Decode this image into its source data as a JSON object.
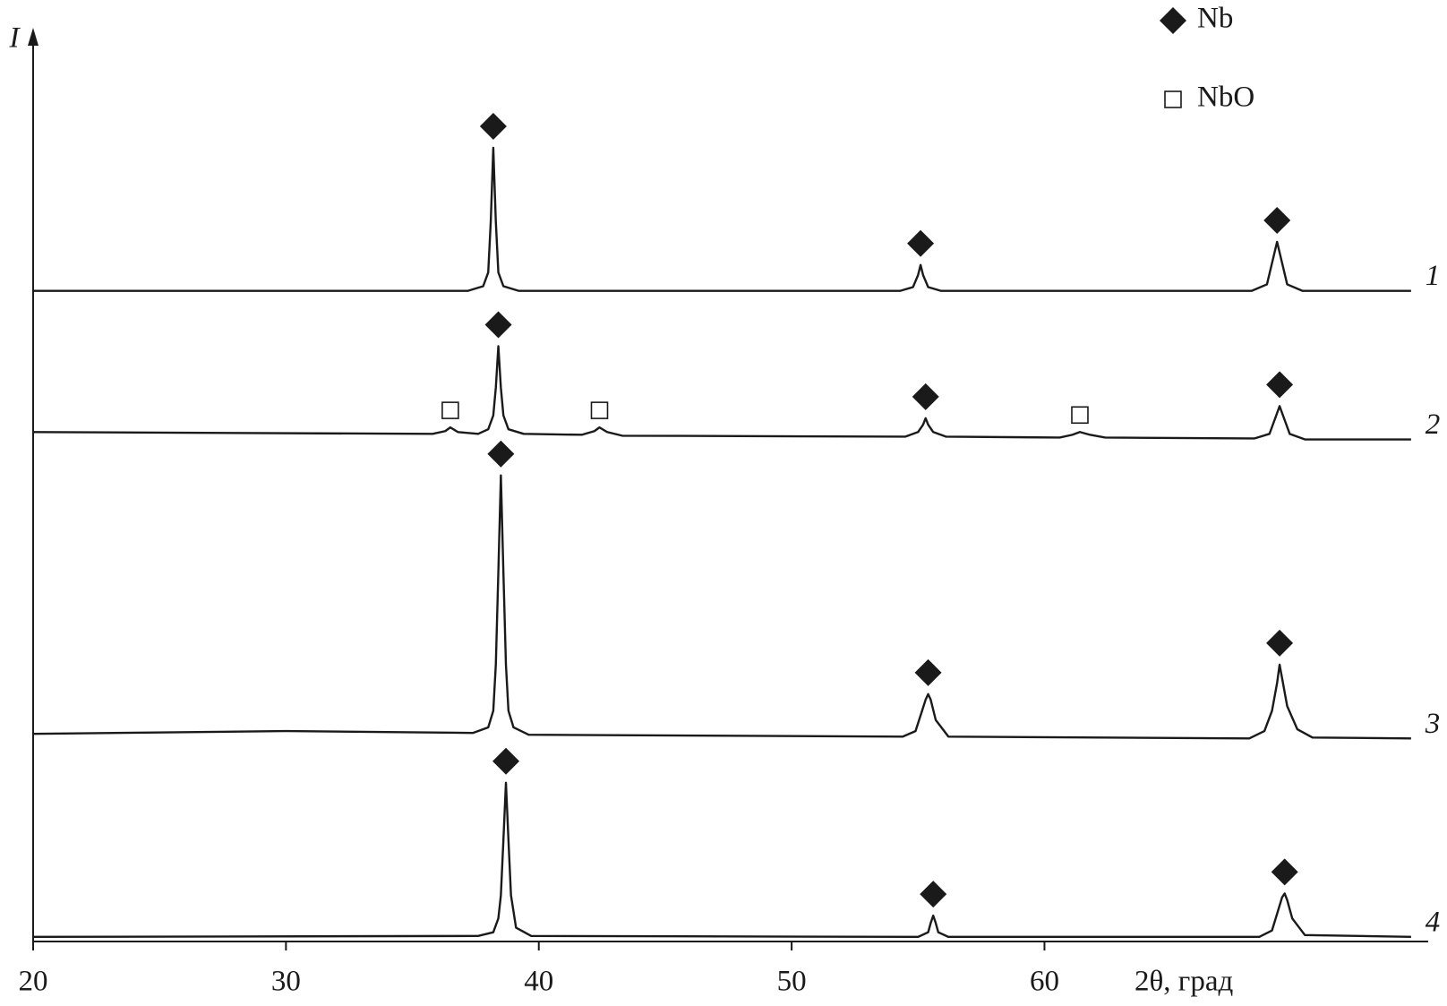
{
  "chart_data": {
    "type": "line",
    "xlabel": "2θ, град",
    "ylabel": "I",
    "xlim": [
      20,
      75
    ],
    "ylim": [
      0,
      990
    ],
    "xticks": [
      20,
      30,
      40,
      50,
      60
    ],
    "color": "#1a1a1a",
    "legend": [
      {
        "name": "Nb",
        "shape": "diamond"
      },
      {
        "name": "NbO",
        "shape": "square"
      }
    ],
    "series": [
      {
        "name": "1",
        "x": [
          20,
          37.2,
          37.8,
          38.0,
          38.1,
          38.2,
          38.3,
          38.4,
          38.6,
          39.2,
          54.3,
          54.8,
          55.0,
          55.1,
          55.2,
          55.4,
          55.9,
          68.2,
          68.8,
          69.0,
          69.2,
          69.4,
          69.6,
          70.2,
          74.5
        ],
        "values": [
          705,
          705,
          710,
          725,
          780,
          860,
          780,
          725,
          710,
          705,
          705,
          709,
          722,
          733,
          722,
          709,
          705,
          705,
          712,
          735,
          758,
          735,
          712,
          705,
          705
        ],
        "peaks": [
          {
            "x": 38.2,
            "phase": 0
          },
          {
            "x": 55.1,
            "phase": 0
          },
          {
            "x": 69.2,
            "phase": 0
          }
        ]
      },
      {
        "name": "2",
        "x": [
          20,
          35.8,
          36.3,
          36.5,
          36.8,
          37.6,
          38.0,
          38.2,
          38.3,
          38.4,
          38.5,
          38.6,
          38.8,
          39.4,
          41.7,
          42.2,
          42.4,
          42.7,
          43.3,
          54.5,
          55.0,
          55.2,
          55.3,
          55.4,
          55.6,
          56.1,
          60.6,
          61.1,
          61.4,
          61.8,
          62.4,
          68.3,
          68.9,
          69.1,
          69.3,
          69.5,
          69.7,
          70.3,
          74.5
        ],
        "values": [
          552,
          550,
          553,
          557,
          552,
          550,
          555,
          570,
          600,
          645,
          600,
          570,
          555,
          550,
          549,
          553,
          557,
          552,
          548,
          547,
          552,
          560,
          567,
          560,
          552,
          547,
          546,
          549,
          552,
          549,
          546,
          545,
          550,
          565,
          580,
          565,
          550,
          544,
          544
        ],
        "peaks": [
          {
            "x": 36.5,
            "phase": 1
          },
          {
            "x": 38.4,
            "phase": 0
          },
          {
            "x": 42.4,
            "phase": 1
          },
          {
            "x": 55.3,
            "phase": 0
          },
          {
            "x": 61.4,
            "phase": 1
          },
          {
            "x": 69.3,
            "phase": 0
          }
        ]
      },
      {
        "name": "3",
        "x": [
          20,
          30,
          37.4,
          38.0,
          38.2,
          38.3,
          38.4,
          38.5,
          38.6,
          38.7,
          38.8,
          39.0,
          39.6,
          54.4,
          54.9,
          55.1,
          55.3,
          55.4,
          55.5,
          55.7,
          56.2,
          68.1,
          68.7,
          69.0,
          69.2,
          69.3,
          69.4,
          69.6,
          70.0,
          70.6,
          74.5
        ],
        "values": [
          225,
          228,
          226,
          232,
          250,
          300,
          400,
          505,
          400,
          300,
          250,
          232,
          224,
          222,
          228,
          245,
          262,
          268,
          262,
          240,
          222,
          220,
          228,
          250,
          280,
          300,
          285,
          255,
          230,
          221,
          220
        ],
        "peaks": [
          {
            "x": 38.5,
            "phase": 0
          },
          {
            "x": 55.4,
            "phase": 0
          },
          {
            "x": 69.3,
            "phase": 0
          }
        ]
      },
      {
        "name": "4",
        "x": [
          20,
          37.6,
          38.2,
          38.4,
          38.5,
          38.6,
          38.7,
          38.8,
          38.9,
          39.1,
          39.7,
          55.0,
          55.4,
          55.5,
          55.6,
          55.7,
          55.8,
          56.2,
          68.5,
          69.0,
          69.2,
          69.4,
          69.5,
          69.6,
          69.8,
          70.3,
          74.5
        ],
        "values": [
          5,
          6,
          10,
          25,
          50,
          110,
          172,
          110,
          50,
          15,
          6,
          5,
          10,
          20,
          28,
          20,
          10,
          5,
          5,
          12,
          30,
          48,
          52,
          45,
          25,
          7,
          5
        ],
        "peaks": [
          {
            "x": 38.7,
            "phase": 0
          },
          {
            "x": 55.6,
            "phase": 0
          },
          {
            "x": 69.5,
            "phase": 0
          }
        ]
      }
    ]
  }
}
